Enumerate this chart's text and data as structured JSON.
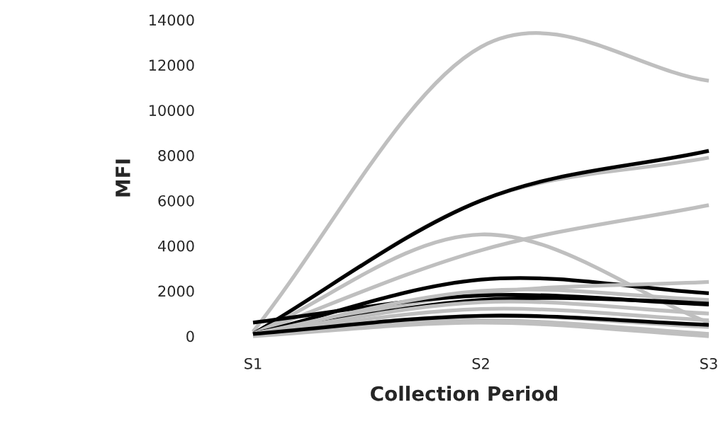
{
  "chart_data": {
    "type": "line",
    "xlabel": "Collection Period",
    "ylabel": "MFI",
    "categories": [
      "S1",
      "S2",
      "S3"
    ],
    "ylim": [
      0,
      14000
    ],
    "yticks": [
      0,
      2000,
      4000,
      6000,
      8000,
      10000,
      12000,
      14000
    ],
    "grid": false,
    "marker": "none",
    "line_style": "solid",
    "series": [
      {
        "color": "#bfbfbf",
        "values": [
          200,
          12800,
          11300
        ]
      },
      {
        "color": "#bfbfbf",
        "values": [
          100,
          6000,
          7900
        ]
      },
      {
        "color": "#000000",
        "values": [
          100,
          6000,
          8200
        ]
      },
      {
        "color": "#bfbfbf",
        "values": [
          100,
          3800,
          5800
        ]
      },
      {
        "color": "#bfbfbf",
        "values": [
          100,
          4500,
          600
        ]
      },
      {
        "color": "#000000",
        "values": [
          100,
          2500,
          1900
        ]
      },
      {
        "color": "#bfbfbf",
        "values": [
          100,
          1900,
          2400
        ]
      },
      {
        "color": "#000000",
        "values": [
          600,
          1800,
          1400
        ]
      },
      {
        "color": "#000000",
        "values": [
          100,
          1600,
          1500
        ]
      },
      {
        "color": "#bfbfbf",
        "values": [
          100,
          2000,
          1600
        ]
      },
      {
        "color": "#bfbfbf",
        "values": [
          100,
          1500,
          1000
        ]
      },
      {
        "color": "#bfbfbf",
        "values": [
          100,
          1200,
          700
        ]
      },
      {
        "color": "#bfbfbf",
        "values": [
          100,
          900,
          400
        ]
      },
      {
        "color": "#bfbfbf",
        "values": [
          100,
          700,
          100
        ]
      },
      {
        "color": "#bfbfbf",
        "values": [
          0,
          600,
          0
        ]
      },
      {
        "color": "#000000",
        "values": [
          100,
          900,
          500
        ]
      }
    ]
  }
}
